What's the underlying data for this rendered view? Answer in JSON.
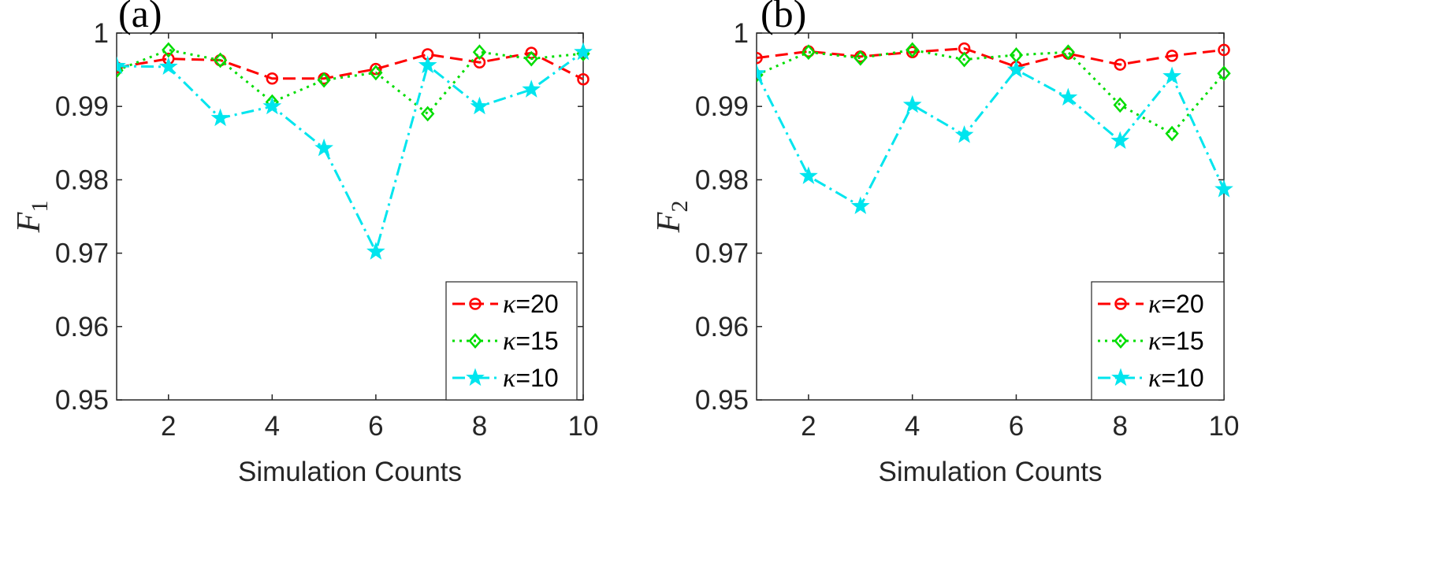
{
  "colors": {
    "kappa20": "#ff0000",
    "kappa15": "#00dd00",
    "kappa10": "#00e5ee",
    "axis": "#262626"
  },
  "chart_data": [
    {
      "type": "line",
      "panel_label": "(a)",
      "xlabel": "Simulation Counts",
      "ylabel": "F",
      "ylabel_subscript": "1",
      "xlim": [
        1,
        10
      ],
      "ylim": [
        0.95,
        1
      ],
      "xticks": [
        2,
        4,
        6,
        8,
        10
      ],
      "yticks": [
        0.95,
        0.96,
        0.97,
        0.98,
        0.99,
        1
      ],
      "ytick_labels": [
        "0.95",
        "0.96",
        "0.97",
        "0.98",
        "0.99",
        "1"
      ],
      "grid": false,
      "legend_position": "bottom-right",
      "x": [
        1,
        2,
        3,
        4,
        5,
        6,
        7,
        8,
        9,
        10
      ],
      "series": [
        {
          "name": "κ=20",
          "kappa": "20",
          "color_key": "kappa20",
          "dash": "dashed",
          "marker": "circle",
          "values": [
            0.9953,
            0.9965,
            0.9963,
            0.9938,
            0.9938,
            0.9951,
            0.9971,
            0.996,
            0.9973,
            0.9937
          ]
        },
        {
          "name": "κ=15",
          "kappa": "15",
          "color_key": "kappa15",
          "dash": "dotted",
          "marker": "diamond",
          "values": [
            0.9949,
            0.9977,
            0.9963,
            0.9906,
            0.9936,
            0.9946,
            0.989,
            0.9974,
            0.9965,
            0.9972
          ]
        },
        {
          "name": "κ=10",
          "kappa": "10",
          "color_key": "kappa10",
          "dash": "dashdot",
          "marker": "star",
          "values": [
            0.9955,
            0.9954,
            0.9884,
            0.99,
            0.9843,
            0.9702,
            0.9956,
            0.99,
            0.9923,
            0.9974
          ]
        }
      ]
    },
    {
      "type": "line",
      "panel_label": "(b)",
      "xlabel": "Simulation Counts",
      "ylabel": "F",
      "ylabel_subscript": "2",
      "xlim": [
        1,
        10
      ],
      "ylim": [
        0.95,
        1
      ],
      "xticks": [
        2,
        4,
        6,
        8,
        10
      ],
      "yticks": [
        0.95,
        0.96,
        0.97,
        0.98,
        0.99,
        1
      ],
      "ytick_labels": [
        "0.95",
        "0.96",
        "0.97",
        "0.98",
        "0.99",
        "1"
      ],
      "grid": false,
      "legend_position": "bottom-right",
      "x": [
        1,
        2,
        3,
        4,
        5,
        6,
        7,
        8,
        9,
        10
      ],
      "series": [
        {
          "name": "κ=20",
          "kappa": "20",
          "color_key": "kappa20",
          "dash": "dashed",
          "marker": "circle",
          "values": [
            0.9966,
            0.9975,
            0.9968,
            0.9974,
            0.9979,
            0.9954,
            0.9972,
            0.9957,
            0.9969,
            0.9977
          ]
        },
        {
          "name": "κ=15",
          "kappa": "15",
          "color_key": "kappa15",
          "dash": "dotted",
          "marker": "diamond",
          "values": [
            0.9943,
            0.9974,
            0.9966,
            0.9977,
            0.9964,
            0.997,
            0.9974,
            0.9902,
            0.9863,
            0.9945
          ]
        },
        {
          "name": "κ=10",
          "kappa": "10",
          "color_key": "kappa10",
          "dash": "dashdot",
          "marker": "star",
          "values": [
            0.9945,
            0.9805,
            0.9764,
            0.9902,
            0.9861,
            0.995,
            0.9912,
            0.9853,
            0.9941,
            0.9787
          ]
        }
      ]
    }
  ]
}
